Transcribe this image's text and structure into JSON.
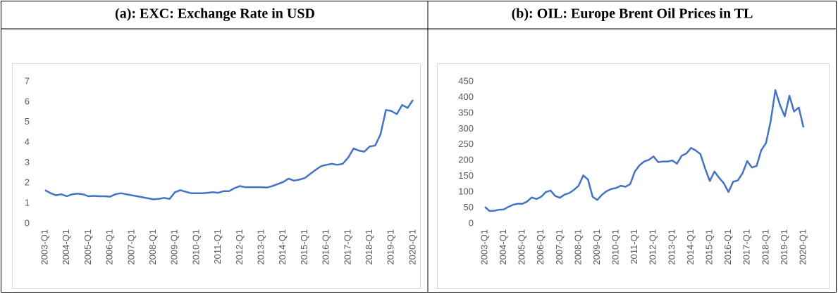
{
  "chart_data": [
    {
      "type": "line",
      "title": "(a): EXC: Exchange Rate in USD",
      "color": "#4472c4",
      "categories": [
        "2003-Q1",
        null,
        null,
        null,
        "2004-Q1",
        null,
        null,
        null,
        "2005-Q1",
        null,
        null,
        null,
        "2006-Q1",
        null,
        null,
        null,
        "2007-Q1",
        null,
        null,
        null,
        "2008-Q1",
        null,
        null,
        null,
        "2009-Q1",
        null,
        null,
        null,
        "2010-Q1",
        null,
        null,
        null,
        "2011-Q1",
        null,
        null,
        null,
        "2012-Q1",
        null,
        null,
        null,
        "2013-Q1",
        null,
        null,
        null,
        "2014-Q1",
        null,
        null,
        null,
        "2015-Q1",
        null,
        null,
        null,
        "2016-Q1",
        null,
        null,
        null,
        "2017-Q1",
        null,
        null,
        null,
        "2018-Q1",
        null,
        null,
        null,
        "2019-Q1",
        null,
        null,
        null,
        "2020-Q1"
      ],
      "values": [
        1.65,
        1.5,
        1.4,
        1.45,
        1.35,
        1.45,
        1.48,
        1.45,
        1.35,
        1.37,
        1.35,
        1.35,
        1.33,
        1.45,
        1.5,
        1.45,
        1.4,
        1.35,
        1.3,
        1.25,
        1.2,
        1.22,
        1.27,
        1.22,
        1.55,
        1.65,
        1.57,
        1.5,
        1.5,
        1.5,
        1.52,
        1.55,
        1.52,
        1.6,
        1.6,
        1.75,
        1.85,
        1.8,
        1.8,
        1.8,
        1.8,
        1.78,
        1.85,
        1.95,
        2.05,
        2.22,
        2.12,
        2.17,
        2.25,
        2.45,
        2.65,
        2.83,
        2.9,
        2.95,
        2.9,
        2.95,
        3.25,
        3.7,
        3.6,
        3.55,
        3.8,
        3.85,
        4.4,
        5.6,
        5.55,
        5.4,
        5.85,
        5.7,
        6.1
      ],
      "ylim": [
        0,
        7
      ],
      "yticks": [
        0,
        1,
        2,
        3,
        4,
        5,
        6,
        7
      ]
    },
    {
      "type": "line",
      "title": "(b): OIL: Europe Brent Oil Prices in TL",
      "color": "#4472c4",
      "categories": [
        "2003-Q1",
        null,
        null,
        null,
        "2004-Q1",
        null,
        null,
        null,
        "2005-Q1",
        null,
        null,
        null,
        "2006-Q1",
        null,
        null,
        null,
        "2007-Q1",
        null,
        null,
        null,
        "2008-Q1",
        null,
        null,
        null,
        "2009-Q1",
        null,
        null,
        null,
        "2010-Q1",
        null,
        null,
        null,
        "2011-Q1",
        null,
        null,
        null,
        "2012-Q1",
        null,
        null,
        null,
        "2013-Q1",
        null,
        null,
        null,
        "2014-Q1",
        null,
        null,
        null,
        "2015-Q1",
        null,
        null,
        null,
        "2016-Q1",
        null,
        null,
        null,
        "2017-Q1",
        null,
        null,
        null,
        "2018-Q1",
        null,
        null,
        null,
        "2019-Q1",
        null,
        null,
        null,
        "2020-Q1"
      ],
      "values": [
        53,
        40,
        41,
        44,
        45,
        53,
        60,
        63,
        63,
        70,
        83,
        78,
        85,
        100,
        105,
        88,
        82,
        92,
        97,
        107,
        120,
        153,
        140,
        85,
        75,
        92,
        103,
        110,
        113,
        120,
        117,
        125,
        165,
        185,
        197,
        202,
        213,
        195,
        197,
        197,
        200,
        190,
        215,
        222,
        240,
        232,
        220,
        175,
        135,
        165,
        145,
        128,
        100,
        133,
        137,
        160,
        198,
        178,
        183,
        233,
        255,
        325,
        423,
        375,
        340,
        405,
        355,
        368,
        305
      ],
      "ylim": [
        0,
        450
      ],
      "yticks": [
        0,
        50,
        100,
        150,
        200,
        250,
        300,
        350,
        400,
        450
      ]
    }
  ]
}
